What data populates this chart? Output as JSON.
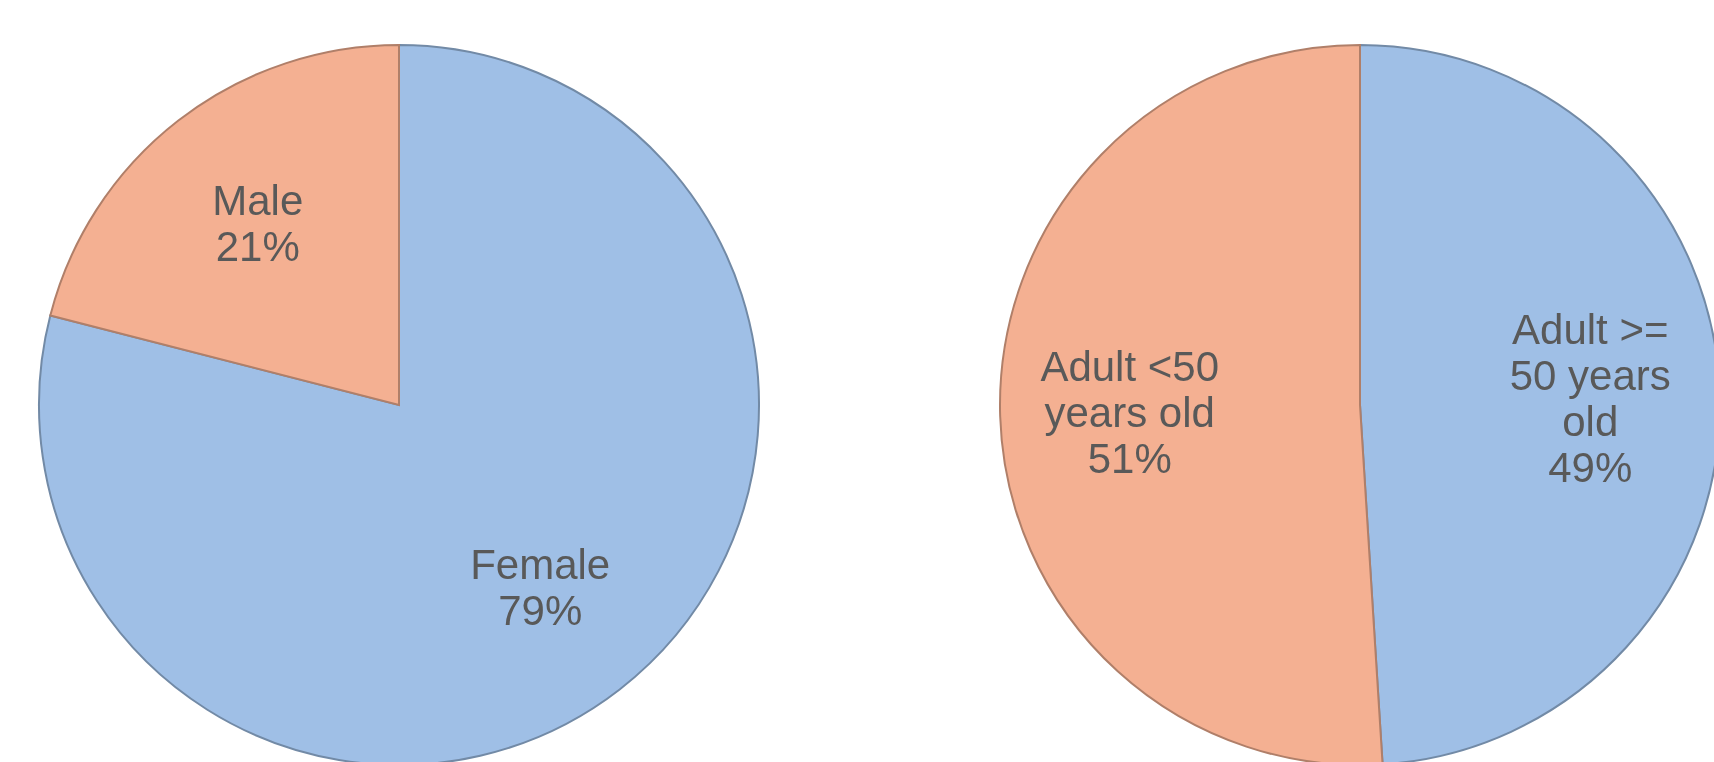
{
  "chart_data": [
    {
      "type": "pie",
      "categories": [
        "Female",
        "Male"
      ],
      "values": [
        79,
        21
      ],
      "colors": [
        "#9fbfe6",
        "#f4b092"
      ],
      "value_labels": [
        "79%",
        "21%"
      ]
    },
    {
      "type": "pie",
      "categories": [
        "Adult >= 50 years old",
        "Adult <50 years old"
      ],
      "values": [
        49,
        51
      ],
      "colors": [
        "#9fbfe6",
        "#f4b092"
      ],
      "value_labels": [
        "49%",
        "51%"
      ]
    }
  ]
}
